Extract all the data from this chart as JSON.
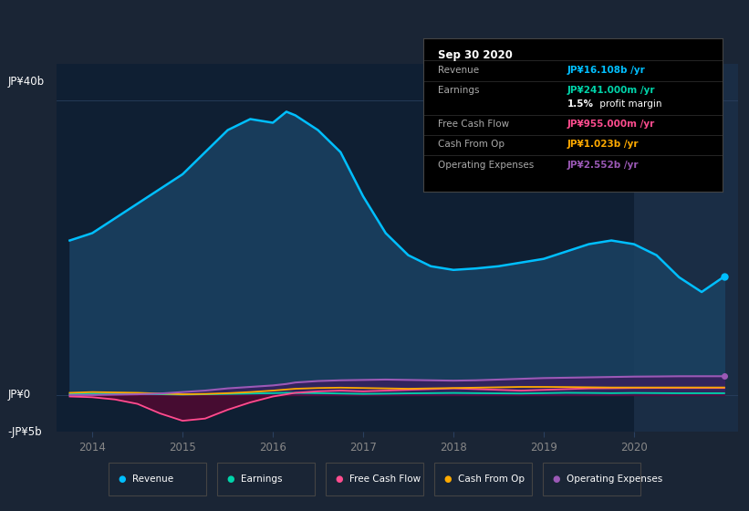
{
  "bg_color": "#1a2535",
  "plot_bg_color": "#0f1f33",
  "plot_bg_highlight": "#1a2d45",
  "grid_color": "#2a4060",
  "years": [
    2013.75,
    2014.0,
    2014.25,
    2014.5,
    2014.75,
    2015.0,
    2015.25,
    2015.5,
    2015.75,
    2016.0,
    2016.15,
    2016.25,
    2016.5,
    2016.75,
    2017.0,
    2017.25,
    2017.5,
    2017.75,
    2018.0,
    2018.25,
    2018.5,
    2018.75,
    2019.0,
    2019.25,
    2019.5,
    2019.75,
    2020.0,
    2020.25,
    2020.5,
    2020.75,
    2021.0
  ],
  "revenue": [
    21,
    22,
    24,
    26,
    28,
    30,
    33,
    36,
    37.5,
    37,
    38.5,
    38,
    36,
    33,
    27,
    22,
    19,
    17.5,
    17,
    17.2,
    17.5,
    18,
    18.5,
    19.5,
    20.5,
    21,
    20.5,
    19,
    16,
    14,
    16.1
  ],
  "earnings": [
    0.15,
    0.2,
    0.18,
    0.15,
    0.1,
    0.05,
    0.1,
    0.15,
    0.2,
    0.25,
    0.3,
    0.28,
    0.25,
    0.2,
    0.15,
    0.18,
    0.22,
    0.25,
    0.28,
    0.25,
    0.22,
    0.2,
    0.25,
    0.3,
    0.28,
    0.25,
    0.28,
    0.26,
    0.24,
    0.242,
    0.241
  ],
  "free_cash_flow": [
    -0.2,
    -0.3,
    -0.6,
    -1.2,
    -2.5,
    -3.5,
    -3.2,
    -2.0,
    -1.0,
    -0.2,
    0.1,
    0.3,
    0.5,
    0.6,
    0.5,
    0.6,
    0.7,
    0.8,
    0.9,
    0.8,
    0.7,
    0.6,
    0.7,
    0.8,
    0.9,
    0.92,
    0.95,
    0.96,
    0.955,
    0.955,
    0.955
  ],
  "cash_from_op": [
    0.3,
    0.4,
    0.35,
    0.3,
    0.2,
    0.1,
    0.15,
    0.25,
    0.4,
    0.6,
    0.75,
    0.85,
    0.95,
    1.0,
    0.95,
    0.9,
    0.85,
    0.9,
    0.95,
    1.0,
    1.05,
    1.1,
    1.1,
    1.08,
    1.05,
    1.02,
    1.02,
    1.02,
    1.023,
    1.023,
    1.023
  ],
  "operating_expenses": [
    0.0,
    0.0,
    0.05,
    0.1,
    0.2,
    0.4,
    0.6,
    0.9,
    1.1,
    1.3,
    1.5,
    1.7,
    1.9,
    2.0,
    2.05,
    2.1,
    2.05,
    2.0,
    1.95,
    2.0,
    2.1,
    2.2,
    2.3,
    2.35,
    2.4,
    2.45,
    2.5,
    2.52,
    2.55,
    2.552,
    2.552
  ],
  "revenue_color": "#00bfff",
  "earnings_color": "#00d4aa",
  "free_cash_flow_color": "#ff4d8f",
  "cash_from_op_color": "#ffaa00",
  "operating_expenses_color": "#9b59b6",
  "revenue_fill": "#1a4060",
  "opex_fill": "#3d1a5e",
  "highlight_start": 2020.0,
  "xlim_min": 2013.6,
  "xlim_max": 2021.15,
  "ylim_min": -5,
  "ylim_max": 45,
  "ytick_labels": [
    "-JP¥5b",
    "JP¥0",
    "JP¥40b"
  ],
  "ytick_values": [
    -5,
    0,
    40
  ],
  "xtick_labels": [
    "2014",
    "2015",
    "2016",
    "2017",
    "2018",
    "2019",
    "2020"
  ],
  "xtick_values": [
    2014,
    2015,
    2016,
    2017,
    2018,
    2019,
    2020
  ],
  "tooltip_title": "Sep 30 2020",
  "tooltip_rows": [
    {
      "label": "Revenue",
      "value": "JP¥16.108b /yr",
      "value_color": "#00bfff",
      "label_color": "#aaaaaa"
    },
    {
      "label": "Earnings",
      "value": "JP¥241.000m /yr",
      "value_color": "#00d4aa",
      "label_color": "#aaaaaa"
    },
    {
      "label": "",
      "value": "1.5% profit margin",
      "value_color": "#ffffff",
      "label_color": "#aaaaaa",
      "bold_prefix": "1.5%"
    },
    {
      "label": "Free Cash Flow",
      "value": "JP¥955.000m /yr",
      "value_color": "#ff4d8f",
      "label_color": "#aaaaaa"
    },
    {
      "label": "Cash From Op",
      "value": "JP¥1.023b /yr",
      "value_color": "#ffaa00",
      "label_color": "#aaaaaa"
    },
    {
      "label": "Operating Expenses",
      "value": "JP¥2.552b /yr",
      "value_color": "#9b59b6",
      "label_color": "#aaaaaa"
    }
  ],
  "legend_labels": [
    "Revenue",
    "Earnings",
    "Free Cash Flow",
    "Cash From Op",
    "Operating Expenses"
  ],
  "legend_colors": [
    "#00bfff",
    "#00d4aa",
    "#ff4d8f",
    "#ffaa00",
    "#9b59b6"
  ]
}
